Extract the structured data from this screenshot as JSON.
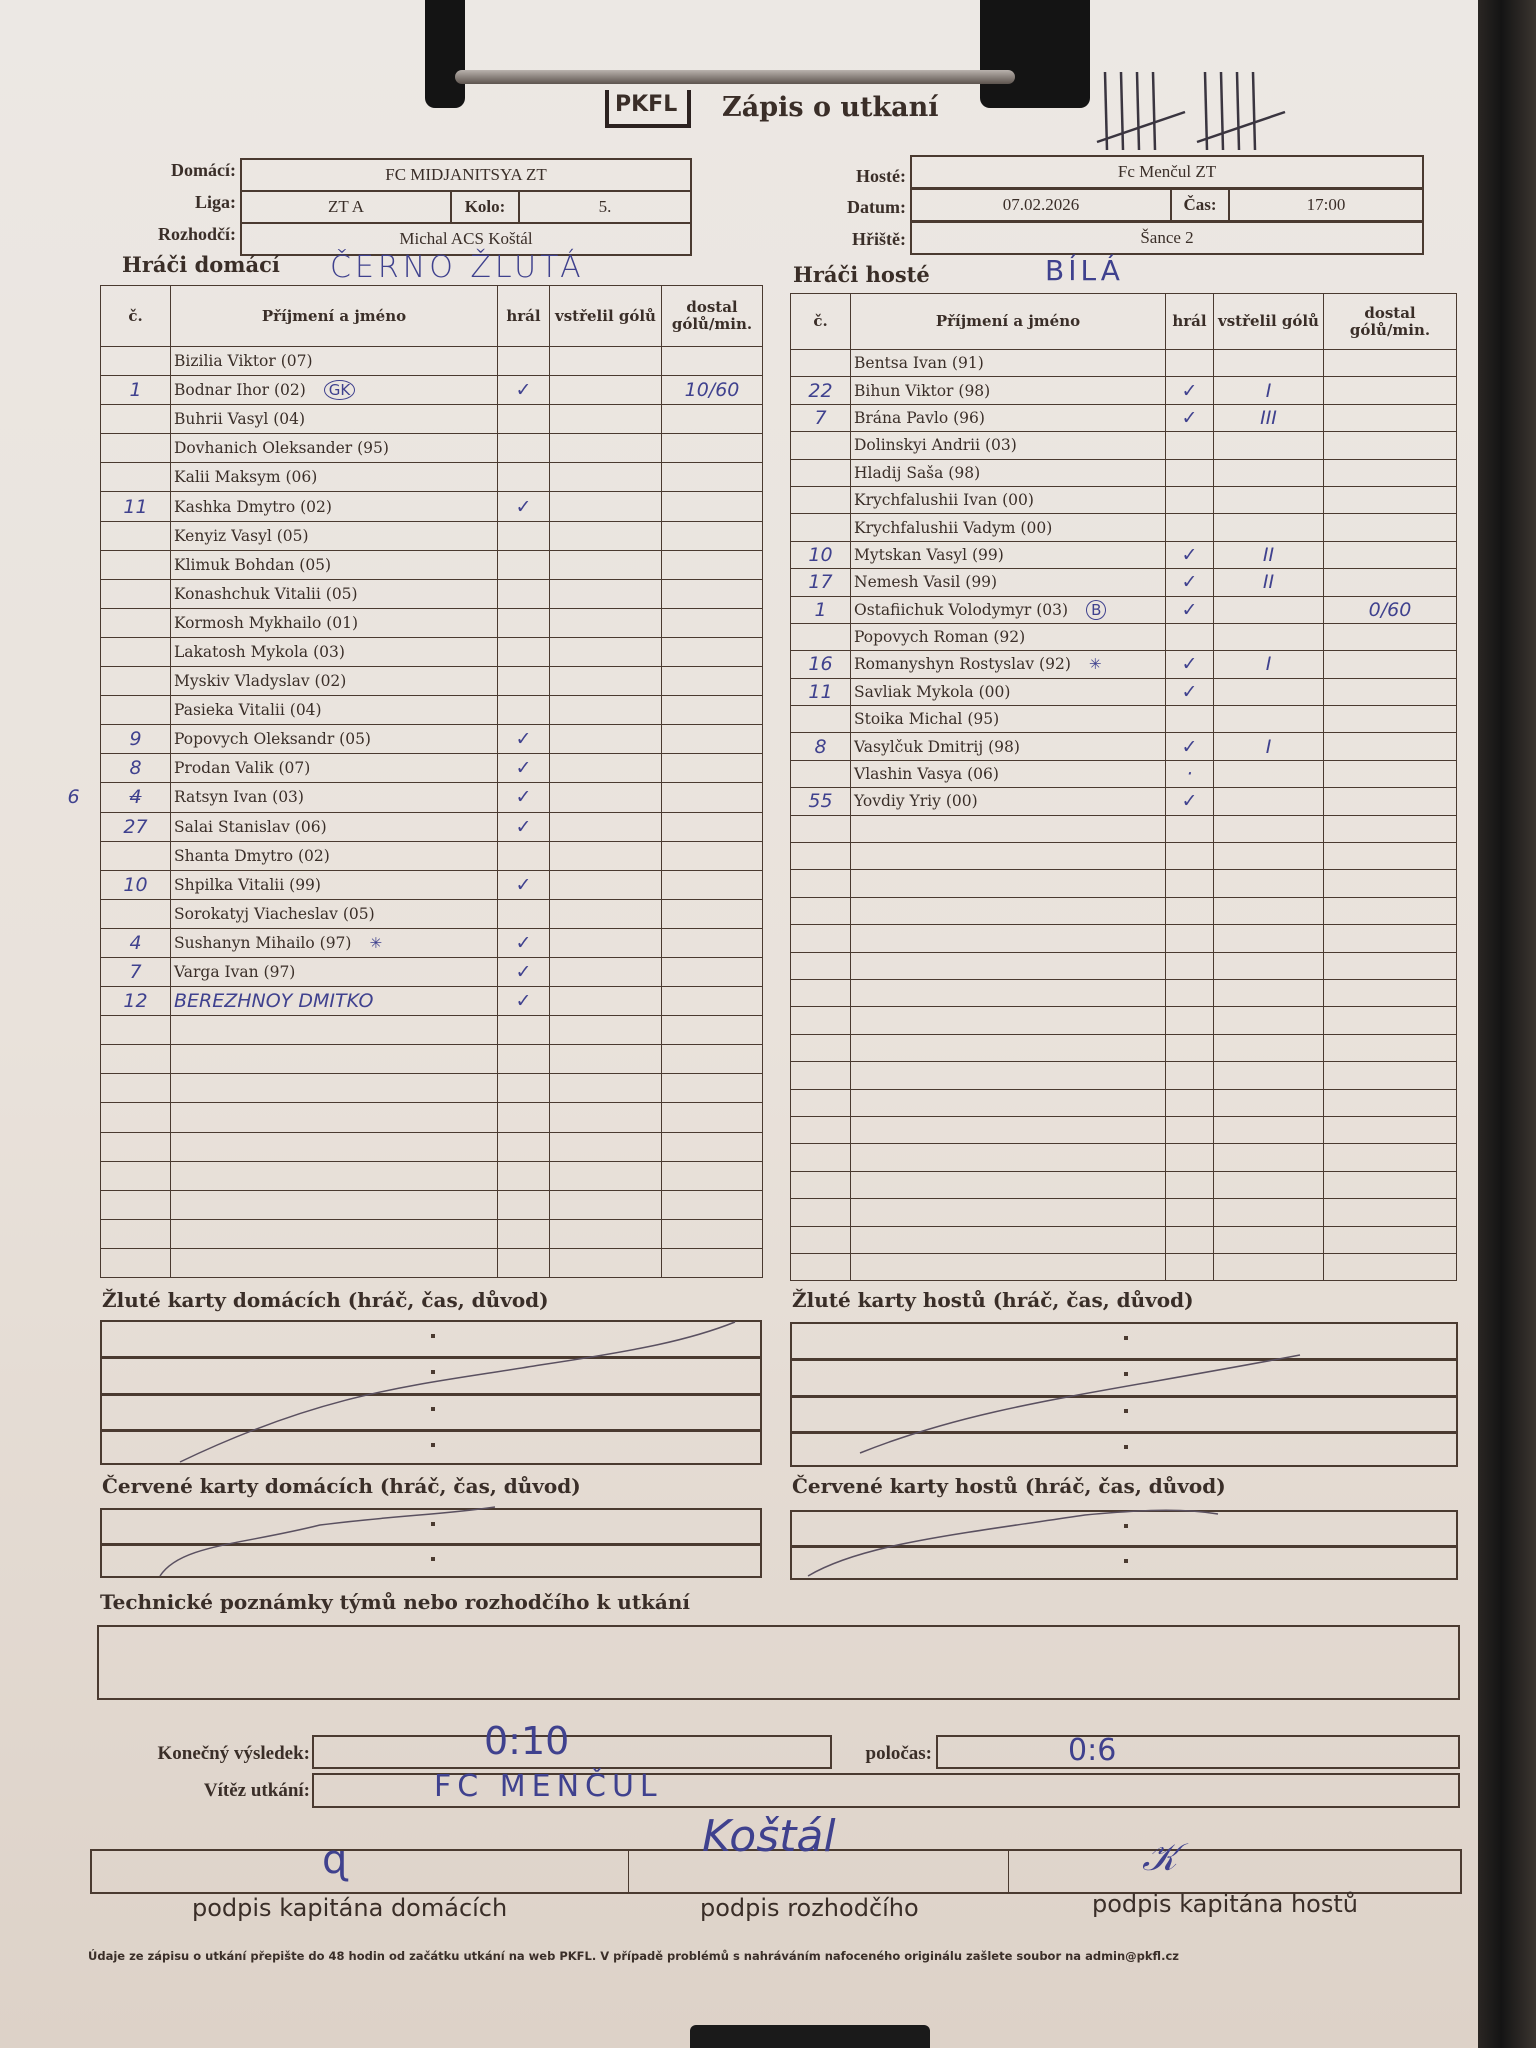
{
  "header": {
    "logo": "PKFL",
    "title": "Zápis o utkaní",
    "tally_count": 10
  },
  "match": {
    "home_label": "Domácí:",
    "home_team": "FC MIDJANITSYA ZT",
    "league_label": "Liga:",
    "league": "ZT A",
    "round_label": "Kolo:",
    "round": "5.",
    "referee_label": "Rozhodčí:",
    "referee": "Michal ACS Koštál",
    "away_label": "Hosté:",
    "away_team": "Fc Menčul ZT",
    "date_label": "Datum:",
    "date": "07.02.2026",
    "time_label": "Čas:",
    "time": "17:00",
    "pitch_label": "Hřiště:",
    "pitch": "Šance 2"
  },
  "home": {
    "section_label": "Hráči domácí",
    "kit_color": "ČERNO ŽLUTÁ",
    "columns": [
      "č.",
      "Příjmení a jméno",
      "hrál",
      "vstřelil gólů",
      "dostal gólů/min."
    ],
    "total_rows": 32,
    "players": [
      {
        "num": "",
        "name": "Bizilia Viktor (07)",
        "played": "",
        "goals": "",
        "conceded": "",
        "note": ""
      },
      {
        "num": "1",
        "name": "Bodnar Ihor (02)",
        "played": "✓",
        "goals": "",
        "conceded": "10/60",
        "note": "GK"
      },
      {
        "num": "",
        "name": "Buhrii Vasyl (04)",
        "played": "",
        "goals": "",
        "conceded": "",
        "note": ""
      },
      {
        "num": "",
        "name": "Dovhanich Oleksander (95)",
        "played": "",
        "goals": "",
        "conceded": "",
        "note": ""
      },
      {
        "num": "",
        "name": "Kalii Maksym (06)",
        "played": "",
        "goals": "",
        "conceded": "",
        "note": ""
      },
      {
        "num": "11",
        "name": "Kashka Dmytro (02)",
        "played": "✓",
        "goals": "",
        "conceded": "",
        "note": ""
      },
      {
        "num": "",
        "name": "Kenyiz Vasyl (05)",
        "played": "",
        "goals": "",
        "conceded": "",
        "note": ""
      },
      {
        "num": "",
        "name": "Klimuk Bohdan (05)",
        "played": "",
        "goals": "",
        "conceded": "",
        "note": ""
      },
      {
        "num": "",
        "name": "Konashchuk Vitalii (05)",
        "played": "",
        "goals": "",
        "conceded": "",
        "note": ""
      },
      {
        "num": "",
        "name": "Kormosh Mykhailo (01)",
        "played": "",
        "goals": "",
        "conceded": "",
        "note": ""
      },
      {
        "num": "",
        "name": "Lakatosh Mykola (03)",
        "played": "",
        "goals": "",
        "conceded": "",
        "note": ""
      },
      {
        "num": "",
        "name": "Myskiv Vladyslav (02)",
        "played": "",
        "goals": "",
        "conceded": "",
        "note": ""
      },
      {
        "num": "",
        "name": "Pasieka Vitalii (04)",
        "played": "",
        "goals": "",
        "conceded": "",
        "note": ""
      },
      {
        "num": "9",
        "name": "Popovych Oleksandr (05)",
        "played": "✓",
        "goals": "",
        "conceded": "",
        "note": ""
      },
      {
        "num": "8",
        "name": "Prodan Valik (07)",
        "played": "✓",
        "goals": "",
        "conceded": "",
        "note": ""
      },
      {
        "num": "4",
        "num_margin": "6",
        "num_struck": true,
        "name": "Ratsyn Ivan (03)",
        "played": "✓",
        "goals": "",
        "conceded": "",
        "note": ""
      },
      {
        "num": "27",
        "name": "Salai Stanislav (06)",
        "played": "✓",
        "goals": "",
        "conceded": "",
        "note": ""
      },
      {
        "num": "",
        "name": "Shanta Dmytro (02)",
        "played": "",
        "goals": "",
        "conceded": "",
        "note": ""
      },
      {
        "num": "10",
        "name": "Shpilka Vitalii (99)",
        "played": "✓",
        "goals": "",
        "conceded": "",
        "note": ""
      },
      {
        "num": "",
        "name": "Sorokatyj Viacheslav (05)",
        "played": "",
        "goals": "",
        "conceded": "",
        "note": ""
      },
      {
        "num": "4",
        "name": "Sushanyn Mihailo (97)",
        "played": "✓",
        "goals": "",
        "conceded": "",
        "note": "✳"
      },
      {
        "num": "7",
        "name": "Varga Ivan (97)",
        "played": "✓",
        "goals": "",
        "conceded": "",
        "note": ""
      },
      {
        "num": "12",
        "name": "BEREZHNOY DMITKO",
        "handwritten": true,
        "played": "✓",
        "goals": "",
        "conceded": "",
        "note": ""
      }
    ]
  },
  "away": {
    "section_label": "Hráči hosté",
    "kit_color": "BÍLÁ",
    "columns": [
      "č.",
      "Příjmení a jméno",
      "hrál",
      "vstřelil gólů",
      "dostal gólů/min."
    ],
    "total_rows": 34,
    "players": [
      {
        "num": "",
        "name": "Bentsa Ivan (91)",
        "played": "",
        "goals": "",
        "conceded": "",
        "note": ""
      },
      {
        "num": "22",
        "name": "Bihun Viktor (98)",
        "played": "✓",
        "goals": "I",
        "conceded": "",
        "note": ""
      },
      {
        "num": "7",
        "name": "Brána Pavlo (96)",
        "played": "✓",
        "goals": "III",
        "conceded": "",
        "note": ""
      },
      {
        "num": "",
        "name": "Dolinskyi Andrii (03)",
        "played": "",
        "goals": "",
        "conceded": "",
        "note": ""
      },
      {
        "num": "",
        "name": "Hladij Saša (98)",
        "played": "",
        "goals": "",
        "conceded": "",
        "note": ""
      },
      {
        "num": "",
        "name": "Krychfalushii Ivan (00)",
        "played": "",
        "goals": "",
        "conceded": "",
        "note": ""
      },
      {
        "num": "",
        "name": "Krychfalushii Vadym (00)",
        "played": "",
        "goals": "",
        "conceded": "",
        "note": ""
      },
      {
        "num": "10",
        "name": "Mytskan Vasyl (99)",
        "played": "✓",
        "goals": "II",
        "conceded": "",
        "note": ""
      },
      {
        "num": "17",
        "name": "Nemesh Vasil (99)",
        "played": "✓",
        "goals": "II",
        "conceded": "",
        "note": ""
      },
      {
        "num": "1",
        "name": "Ostafiichuk Volodymyr (03)",
        "played": "✓",
        "goals": "",
        "conceded": "0/60",
        "note": "B"
      },
      {
        "num": "",
        "name": "Popovych Roman (92)",
        "played": "",
        "goals": "",
        "conceded": "",
        "note": ""
      },
      {
        "num": "16",
        "name": "Romanyshyn Rostyslav (92)",
        "played": "✓",
        "goals": "I",
        "conceded": "",
        "note": "✳"
      },
      {
        "num": "11",
        "name": "Savliak Mykola (00)",
        "played": "✓",
        "goals": "",
        "conceded": "",
        "note": ""
      },
      {
        "num": "",
        "name": "Stoika Michal (95)",
        "played": "",
        "goals": "",
        "conceded": "",
        "note": ""
      },
      {
        "num": "8",
        "name": "Vasylčuk Dmitrij (98)",
        "played": "✓",
        "goals": "I",
        "conceded": "",
        "note": ""
      },
      {
        "num": "",
        "name": "Vlashin Vasya (06)",
        "played": "·",
        "goals": "",
        "conceded": "",
        "note": ""
      },
      {
        "num": "55",
        "name": "Yovdiy Yriy (00)",
        "played": "✓",
        "goals": "",
        "conceded": "",
        "note": ""
      }
    ]
  },
  "cards": {
    "yellow_home_label": "Žluté karty domácích (hráč, čas, důvod)",
    "yellow_away_label": "Žluté karty hostů (hráč, čas, důvod)",
    "red_home_label": "Červené karty domácích (hráč, čas, důvod)",
    "red_away_label": "Červené karty hostů (hráč, čas, důvod)"
  },
  "notes": {
    "label": "Technické poznámky týmů nebo rozhodčího k utkání",
    "value": ""
  },
  "result": {
    "final_label": "Konečný výsledek:",
    "final": "0:10",
    "half_label": "poločas:",
    "half": "0:6",
    "winner_label": "Vítěz utkání:",
    "winner": "FC MENČUL"
  },
  "signatures": {
    "home_captain_label": "podpis kapitána domácích",
    "referee_label": "podpis rozhodčího",
    "away_captain_label": "podpis kapitána hostů",
    "referee_signature": "Koštál"
  },
  "footer": "Údaje ze zápisu o utkání přepište do 48 hodin od začátku utkání na web PKFL. V případě problémů s nahráváním nafoceného originálu zašlete soubor na admin@pkfl.cz",
  "colors": {
    "ink": "#3f418e",
    "print": "#3a2e28",
    "paper": "#ebe5df"
  }
}
